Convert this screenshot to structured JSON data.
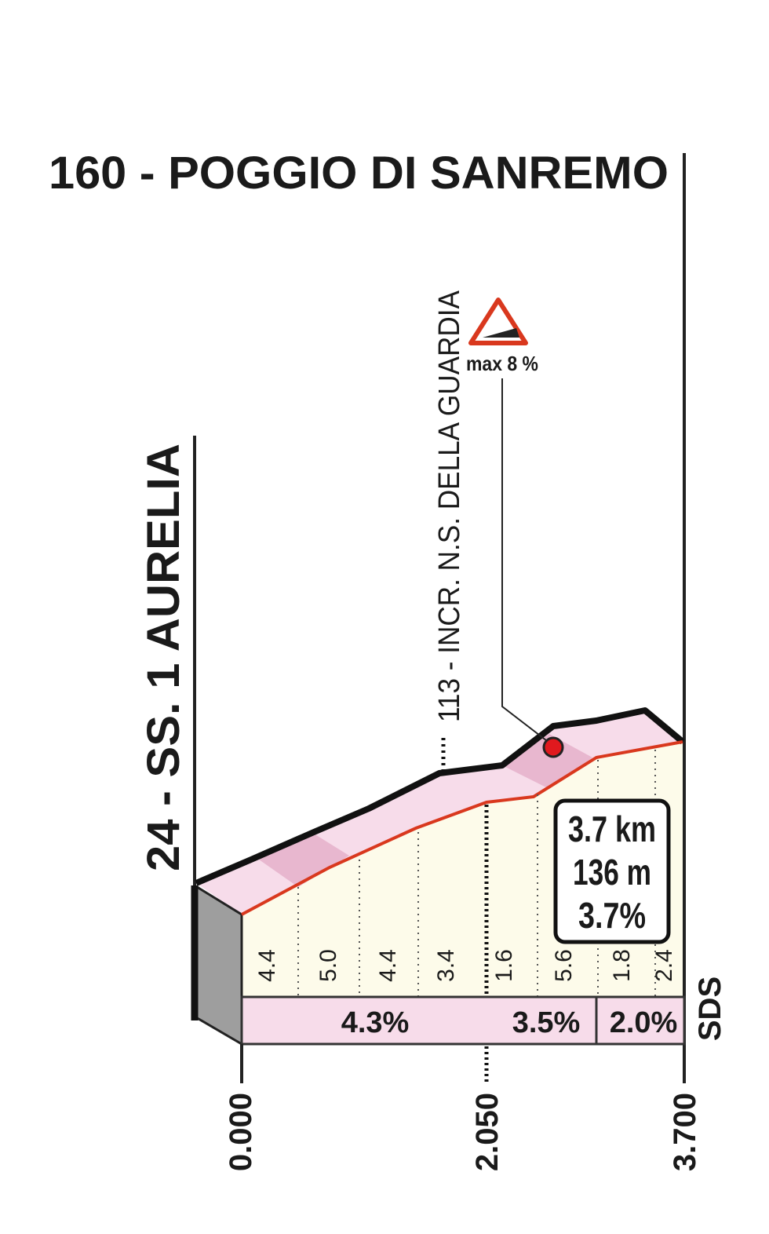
{
  "title": "160 - POGGIO DI SANREMO",
  "start_label": "24 - SS. 1 AURELIA",
  "waypoint_label": "113 - INCR. N.S. DELLA GUARDIA",
  "max_gradient": "max 8 %",
  "summary": [
    "3.7 km",
    "136 m",
    "3.7%"
  ],
  "km_gradients": [
    "4.4",
    "5.0",
    "4.4",
    "3.4",
    "1.6",
    "5.6",
    "1.8",
    "2.4"
  ],
  "section_gradients": [
    "4.3%",
    "3.5%",
    "2.0%"
  ],
  "distances": [
    "0.000",
    "2.050",
    "3.700"
  ],
  "brand": "SDS"
}
